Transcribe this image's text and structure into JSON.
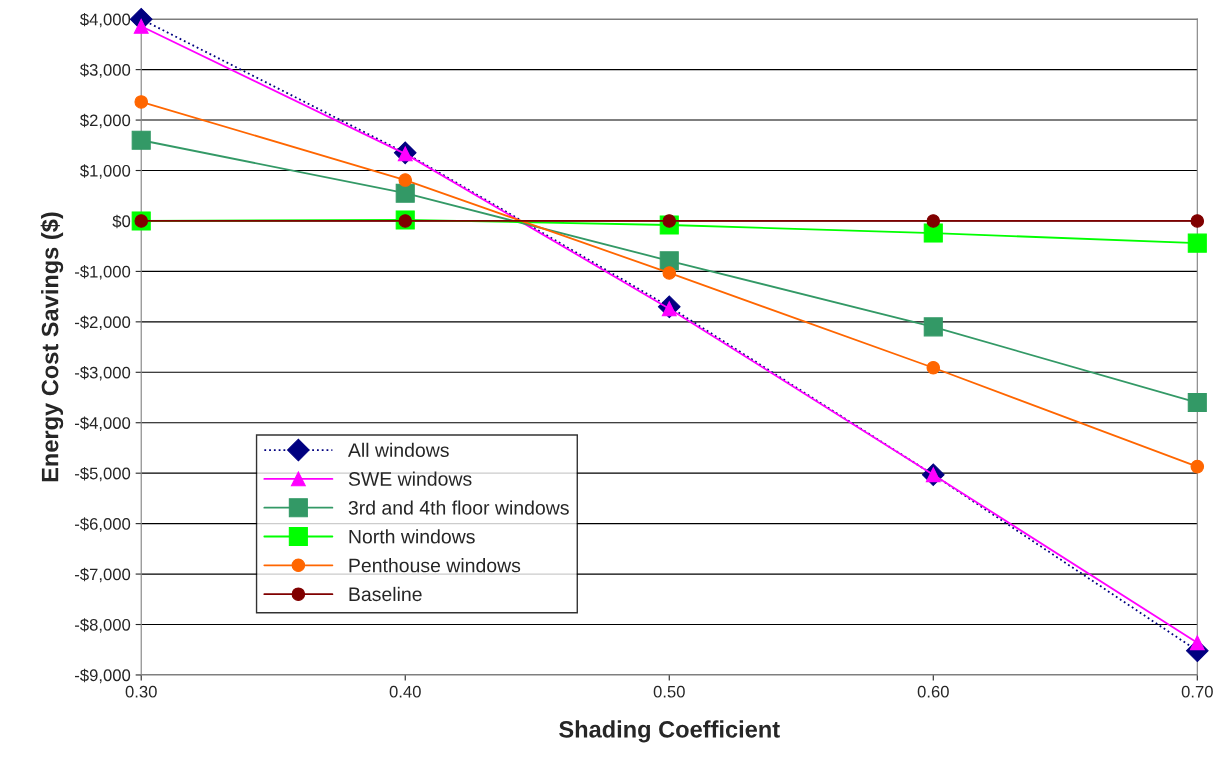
{
  "chart_data": {
    "type": "line",
    "xlabel": "Shading Coefficient",
    "ylabel": "Energy Cost Savings ($)",
    "x": [
      0.3,
      0.4,
      0.5,
      0.6,
      0.7
    ],
    "series": [
      {
        "name": "All windows",
        "color": "#000080",
        "marker": "diamond",
        "line_style": "dotted",
        "values": [
          4000,
          1350,
          -1700,
          -5030,
          -8520
        ]
      },
      {
        "name": "SWE windows",
        "color": "#ff00ff",
        "marker": "triangle",
        "line_style": "solid",
        "values": [
          3860,
          1330,
          -1740,
          -5030,
          -8360
        ]
      },
      {
        "name": "3rd and 4th floor windows",
        "color": "#339966",
        "marker": "square",
        "line_style": "solid",
        "values": [
          1600,
          550,
          -790,
          -2100,
          -3600
        ]
      },
      {
        "name": "North windows",
        "color": "#00ff00",
        "marker": "square",
        "line_style": "solid",
        "values": [
          0,
          20,
          -80,
          -240,
          -440
        ]
      },
      {
        "name": "Penthouse windows",
        "color": "#ff6600",
        "marker": "circle",
        "line_style": "solid",
        "values": [
          2360,
          810,
          -1030,
          -2910,
          -4870
        ]
      },
      {
        "name": "Baseline",
        "color": "#800000",
        "marker": "circle",
        "line_style": "solid",
        "values": [
          0,
          0,
          0,
          0,
          0
        ]
      }
    ],
    "xlim": [
      0.3,
      0.7
    ],
    "xticks": [
      {
        "value": 0.3,
        "label": "0.30"
      },
      {
        "value": 0.4,
        "label": "0.40"
      },
      {
        "value": 0.5,
        "label": "0.50"
      },
      {
        "value": 0.6,
        "label": "0.60"
      },
      {
        "value": 0.7,
        "label": "0.70"
      }
    ],
    "ylim": [
      -9000,
      4000
    ],
    "yticks": [
      {
        "value": -9000,
        "label": "-$9,000"
      },
      {
        "value": -8000,
        "label": "-$8,000"
      },
      {
        "value": -7000,
        "label": "-$7,000"
      },
      {
        "value": -6000,
        "label": "-$6,000"
      },
      {
        "value": -5000,
        "label": "-$5,000"
      },
      {
        "value": -4000,
        "label": "-$4,000"
      },
      {
        "value": -3000,
        "label": "-$3,000"
      },
      {
        "value": -2000,
        "label": "-$2,000"
      },
      {
        "value": -1000,
        "label": "-$1,000"
      },
      {
        "value": 0,
        "label": "$0"
      },
      {
        "value": 1000,
        "label": "$1,000"
      },
      {
        "value": 2000,
        "label": "$2,000"
      },
      {
        "value": 3000,
        "label": "$3,000"
      },
      {
        "value": 4000,
        "label": "$4,000"
      }
    ],
    "grid": "y",
    "legend": "bottom left"
  }
}
